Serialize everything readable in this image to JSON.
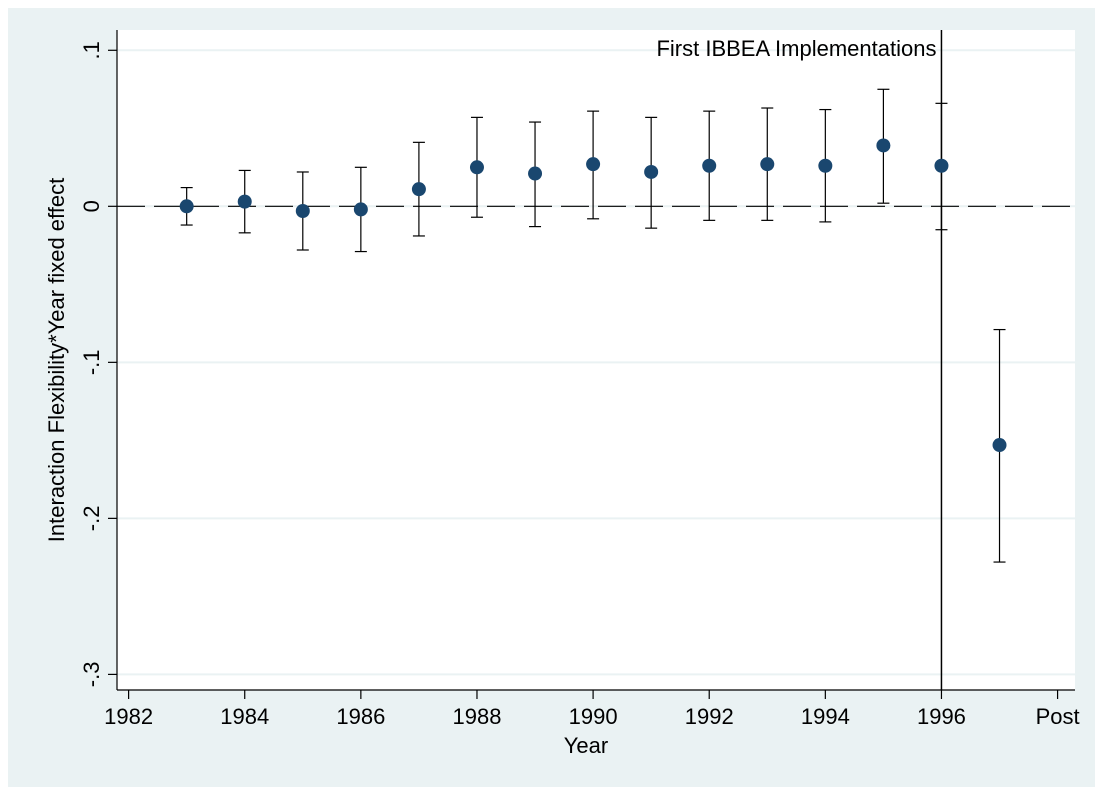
{
  "chart_data": {
    "type": "errorbar",
    "x_label": "Year",
    "y_label": "Interaction Flexibility*Year fixed effect",
    "annotation": "First IBBEA Implementations",
    "x": [
      1983,
      1984,
      1985,
      1986,
      1987,
      1988,
      1989,
      1990,
      1991,
      1992,
      1993,
      1994,
      1995,
      1996,
      1997
    ],
    "values": [
      0,
      0.003,
      -0.003,
      -0.002,
      0.011,
      0.025,
      0.021,
      0.027,
      0.022,
      0.026,
      0.027,
      0.026,
      0.039,
      0.026,
      -0.153
    ],
    "lower": [
      -0.012,
      -0.017,
      -0.028,
      -0.029,
      -0.019,
      -0.007,
      -0.013,
      -0.008,
      -0.014,
      -0.009,
      -0.009,
      -0.01,
      0.002,
      -0.015,
      -0.228
    ],
    "upper": [
      0.012,
      0.023,
      0.022,
      0.025,
      0.041,
      0.057,
      0.054,
      0.061,
      0.057,
      0.061,
      0.063,
      0.062,
      0.075,
      0.066,
      -0.079
    ],
    "color": "#1a476f",
    "xline": 1996,
    "yline": 0,
    "xlim": [
      1981.8,
      1998.3
    ],
    "ylim": [
      -0.31,
      0.113
    ],
    "xticks": [
      1982,
      1984,
      1986,
      1988,
      1990,
      1992,
      1994,
      1996,
      {
        "value": 1998,
        "label": "Post"
      }
    ],
    "yticks": [
      {
        "value": 0.1,
        "label": ".1"
      },
      0,
      {
        "value": -0.1,
        "label": "-.1"
      },
      {
        "value": -0.2,
        "label": "-.2"
      },
      {
        "value": -0.3,
        "label": "-.3"
      }
    ],
    "grid": true
  }
}
